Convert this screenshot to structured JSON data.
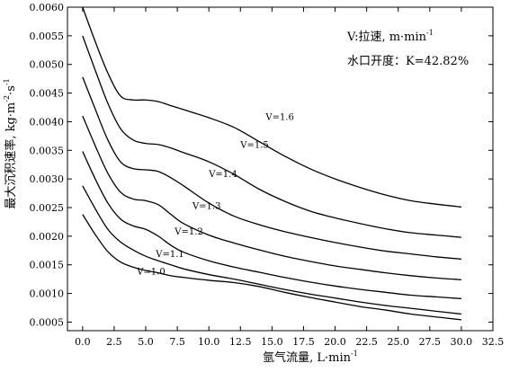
{
  "chart_data": {
    "type": "line",
    "xlabel": "氩气流量, L·min",
    "xlabel_sup": "-1",
    "ylabel": "最大沉积速率, kg·m",
    "ylabel_sup1": "-2",
    "ylabel_mid": "·s",
    "ylabel_sup2": "-1",
    "xlim": [
      -1.2,
      32.5
    ],
    "ylim": [
      0.00035,
      0.006
    ],
    "xticks": [
      "0.0",
      "2.5",
      "5.0",
      "7.5",
      "10.0",
      "12.5",
      "15.0",
      "17.5",
      "20.0",
      "22.5",
      "25.0",
      "27.5",
      "30.0",
      "32.5"
    ],
    "yticks": [
      "0.0005",
      "0.0010",
      "0.0015",
      "0.0020",
      "0.0025",
      "0.0030",
      "0.0035",
      "0.0040",
      "0.0045",
      "0.0050",
      "0.0055",
      "0.0060"
    ],
    "annotation_line1": "V:拉速, m·min",
    "annotation_line1_sup": "-1",
    "annotation_line2": "水口开度：K=42.82%",
    "grid": false,
    "legend": "inline labels",
    "series": [
      {
        "name": "V=1.6",
        "x": [
          0,
          1,
          2,
          3,
          4,
          5,
          6,
          7,
          8,
          10,
          12,
          14,
          16,
          18,
          20,
          22,
          24,
          26,
          28,
          30
        ],
        "values": [
          0.006,
          0.0054,
          0.00485,
          0.00445,
          0.00438,
          0.00438,
          0.00435,
          0.00428,
          0.00421,
          0.00407,
          0.0039,
          0.00365,
          0.0034,
          0.00318,
          0.003,
          0.00285,
          0.00272,
          0.00262,
          0.00256,
          0.00251
        ],
        "label_x": 14.5,
        "label_y": 0.00403
      },
      {
        "name": "V=1.5",
        "x": [
          0,
          1,
          2,
          3,
          4,
          5,
          6,
          7,
          8,
          10,
          12,
          14,
          16,
          18,
          20,
          22,
          24,
          26,
          28,
          30
        ],
        "values": [
          0.0055,
          0.0049,
          0.00432,
          0.00388,
          0.00368,
          0.00362,
          0.0036,
          0.00354,
          0.00346,
          0.0033,
          0.00308,
          0.00282,
          0.00261,
          0.00244,
          0.00232,
          0.00222,
          0.00213,
          0.00206,
          0.00202,
          0.00198
        ],
        "label_x": 12.5,
        "label_y": 0.00354
      },
      {
        "name": "V=1.4",
        "x": [
          0,
          1,
          2,
          3,
          4,
          5,
          6,
          7,
          8,
          10,
          12,
          14,
          16,
          18,
          20,
          22,
          24,
          26,
          28,
          30
        ],
        "values": [
          0.00478,
          0.00422,
          0.00368,
          0.0033,
          0.00318,
          0.00316,
          0.00313,
          0.00302,
          0.00288,
          0.00258,
          0.00235,
          0.0022,
          0.00208,
          0.00198,
          0.00189,
          0.00181,
          0.00174,
          0.00169,
          0.00164,
          0.0016
        ],
        "label_x": 10.0,
        "label_y": 0.00303
      },
      {
        "name": "V=1.3",
        "x": [
          0,
          1,
          2,
          3,
          4,
          5,
          6,
          7,
          8,
          10,
          12,
          14,
          16,
          18,
          20,
          22,
          24,
          26,
          28,
          30
        ],
        "values": [
          0.0041,
          0.00358,
          0.0031,
          0.00277,
          0.00265,
          0.00262,
          0.00255,
          0.00238,
          0.00222,
          0.00202,
          0.00188,
          0.00176,
          0.00165,
          0.00156,
          0.00148,
          0.00142,
          0.00136,
          0.00131,
          0.00127,
          0.00124
        ],
        "label_x": 8.7,
        "label_y": 0.00248
      },
      {
        "name": "V=1.2",
        "x": [
          0,
          1,
          2,
          3,
          4,
          5,
          6,
          7,
          8,
          10,
          12,
          14,
          16,
          18,
          20,
          22,
          24,
          26,
          28,
          30
        ],
        "values": [
          0.00348,
          0.003,
          0.00258,
          0.0023,
          0.00218,
          0.00212,
          0.002,
          0.00184,
          0.00172,
          0.00157,
          0.00146,
          0.00137,
          0.00128,
          0.0012,
          0.00113,
          0.00107,
          0.00102,
          0.00097,
          0.00094,
          0.00091
        ],
        "label_x": 7.3,
        "label_y": 0.00203
      },
      {
        "name": "V=1.1",
        "x": [
          0,
          1,
          2,
          3,
          4,
          5,
          6,
          7,
          8,
          10,
          12,
          14,
          16,
          18,
          20,
          22,
          24,
          26,
          28,
          30
        ],
        "values": [
          0.00288,
          0.00248,
          0.00212,
          0.0019,
          0.00176,
          0.00165,
          0.00157,
          0.0015,
          0.00143,
          0.00133,
          0.00125,
          0.00116,
          0.00107,
          0.00099,
          0.00092,
          0.00085,
          0.00079,
          0.00074,
          0.00069,
          0.00064
        ],
        "label_x": 5.8,
        "label_y": 0.00164
      },
      {
        "name": "V=1.0",
        "x": [
          0,
          1,
          2,
          3,
          4,
          5,
          6,
          7,
          8,
          10,
          12,
          14,
          16,
          18,
          20,
          22,
          24,
          26,
          28,
          30
        ],
        "values": [
          0.00238,
          0.00203,
          0.00173,
          0.00155,
          0.00146,
          0.0014,
          0.00136,
          0.00131,
          0.00128,
          0.00123,
          0.00119,
          0.00112,
          0.00102,
          0.00093,
          0.00085,
          0.00077,
          0.00071,
          0.00064,
          0.00059,
          0.00054
        ],
        "label_x": 4.3,
        "label_y": 0.00133
      }
    ]
  }
}
